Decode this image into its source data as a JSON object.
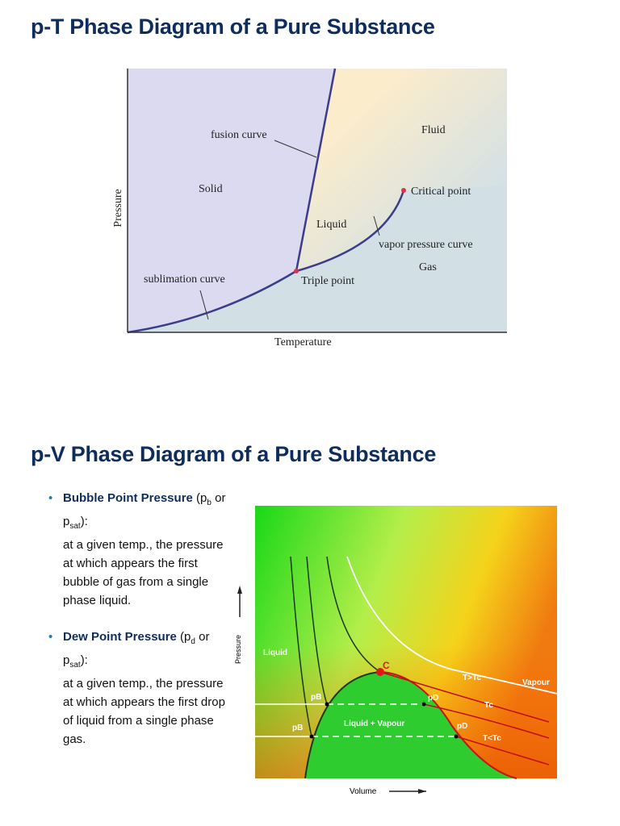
{
  "pt_section": {
    "title": "p-T Phase Diagram of a Pure Substance",
    "diagram": {
      "x_axis_label": "Temperature",
      "y_axis_label": "Pressure",
      "labels": [
        "fusion curve",
        "Fluid",
        "Solid",
        "Critical point",
        "Liquid",
        "vapor pressure curve",
        "Gas",
        "sublimation curve",
        "Triple point"
      ]
    }
  },
  "pv_section": {
    "title": "p-V Phase Diagram of a Pure Substance",
    "bullets": [
      {
        "term": "Bubble Point Pressure",
        "paren_open": " (p",
        "sub1": "b",
        "mid": " or p",
        "sub2": "sat",
        "close": "):",
        "text": "at a given temp., the pressure at which appears the first bubble of gas from a single phase liquid."
      },
      {
        "term": "Dew Point Pressure",
        "paren_open": " (p",
        "sub1": "d",
        "mid": " or p",
        "sub2": "sat",
        "close": "):",
        "text": "at a given temp., the pressure at which appears the first drop of liquid from a single phase gas."
      }
    ],
    "diagram": {
      "x_axis_label": "Volume",
      "y_axis_label": "Pressure",
      "labels": [
        "Liquid",
        "C",
        "T>Tc",
        "Vapour",
        "pD",
        "Tc",
        "pB",
        "Liquid + Vapour",
        "pD",
        "pB",
        "T<Tc"
      ]
    }
  }
}
